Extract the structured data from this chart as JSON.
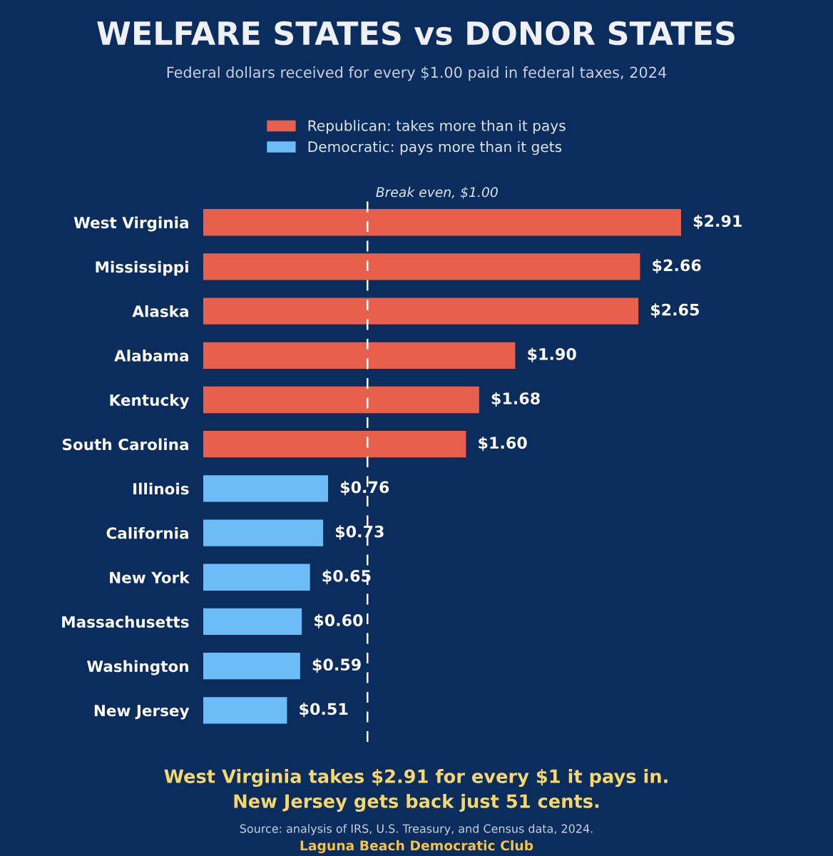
{
  "chart_data": {
    "type": "bar",
    "orientation": "horizontal",
    "title": "WELFARE STATES vs DONOR STATES",
    "subtitle": "Federal dollars received for every $1.00 paid in federal taxes, 2024",
    "categories": [
      "West Virginia",
      "Mississippi",
      "Alaska",
      "Alabama",
      "Kentucky",
      "South Carolina",
      "Illinois",
      "California",
      "New York",
      "Massachusetts",
      "Washington",
      "New Jersey"
    ],
    "series": [
      {
        "name": "Republican: takes more than it pays",
        "color": "#e8604c",
        "values": [
          2.91,
          2.66,
          2.65,
          1.9,
          1.68,
          1.6,
          null,
          null,
          null,
          null,
          null,
          null
        ],
        "value_labels": [
          "$2.91",
          "$2.66",
          "$2.65",
          "$1.90",
          "$1.68",
          "$1.60",
          null,
          null,
          null,
          null,
          null,
          null
        ]
      },
      {
        "name": "Democratic: pays more than it gets",
        "color": "#6cbdf7",
        "values": [
          null,
          null,
          null,
          null,
          null,
          null,
          0.76,
          0.73,
          0.65,
          0.6,
          0.59,
          0.51
        ],
        "value_labels": [
          null,
          null,
          null,
          null,
          null,
          null,
          "$0.76",
          "$0.73",
          "$0.65",
          "$0.60",
          "$0.59",
          "$0.51"
        ]
      }
    ],
    "ref_lines": [
      {
        "axis": "x",
        "value": 1.0,
        "label": "Break even, $1.00",
        "color": "#ffffff",
        "line_style": "dashed"
      }
    ],
    "legend": "top",
    "grid": false,
    "tick_labels": "y",
    "annotations": [
      "West Virginia takes $2.91 for every $1 it pays in.\nNew Jersey gets back just 51 cents.",
      "Source: analysis of IRS, U.S. Treasury, and Census data, 2024.",
      "Laguna Beach Democratic Club"
    ]
  }
}
